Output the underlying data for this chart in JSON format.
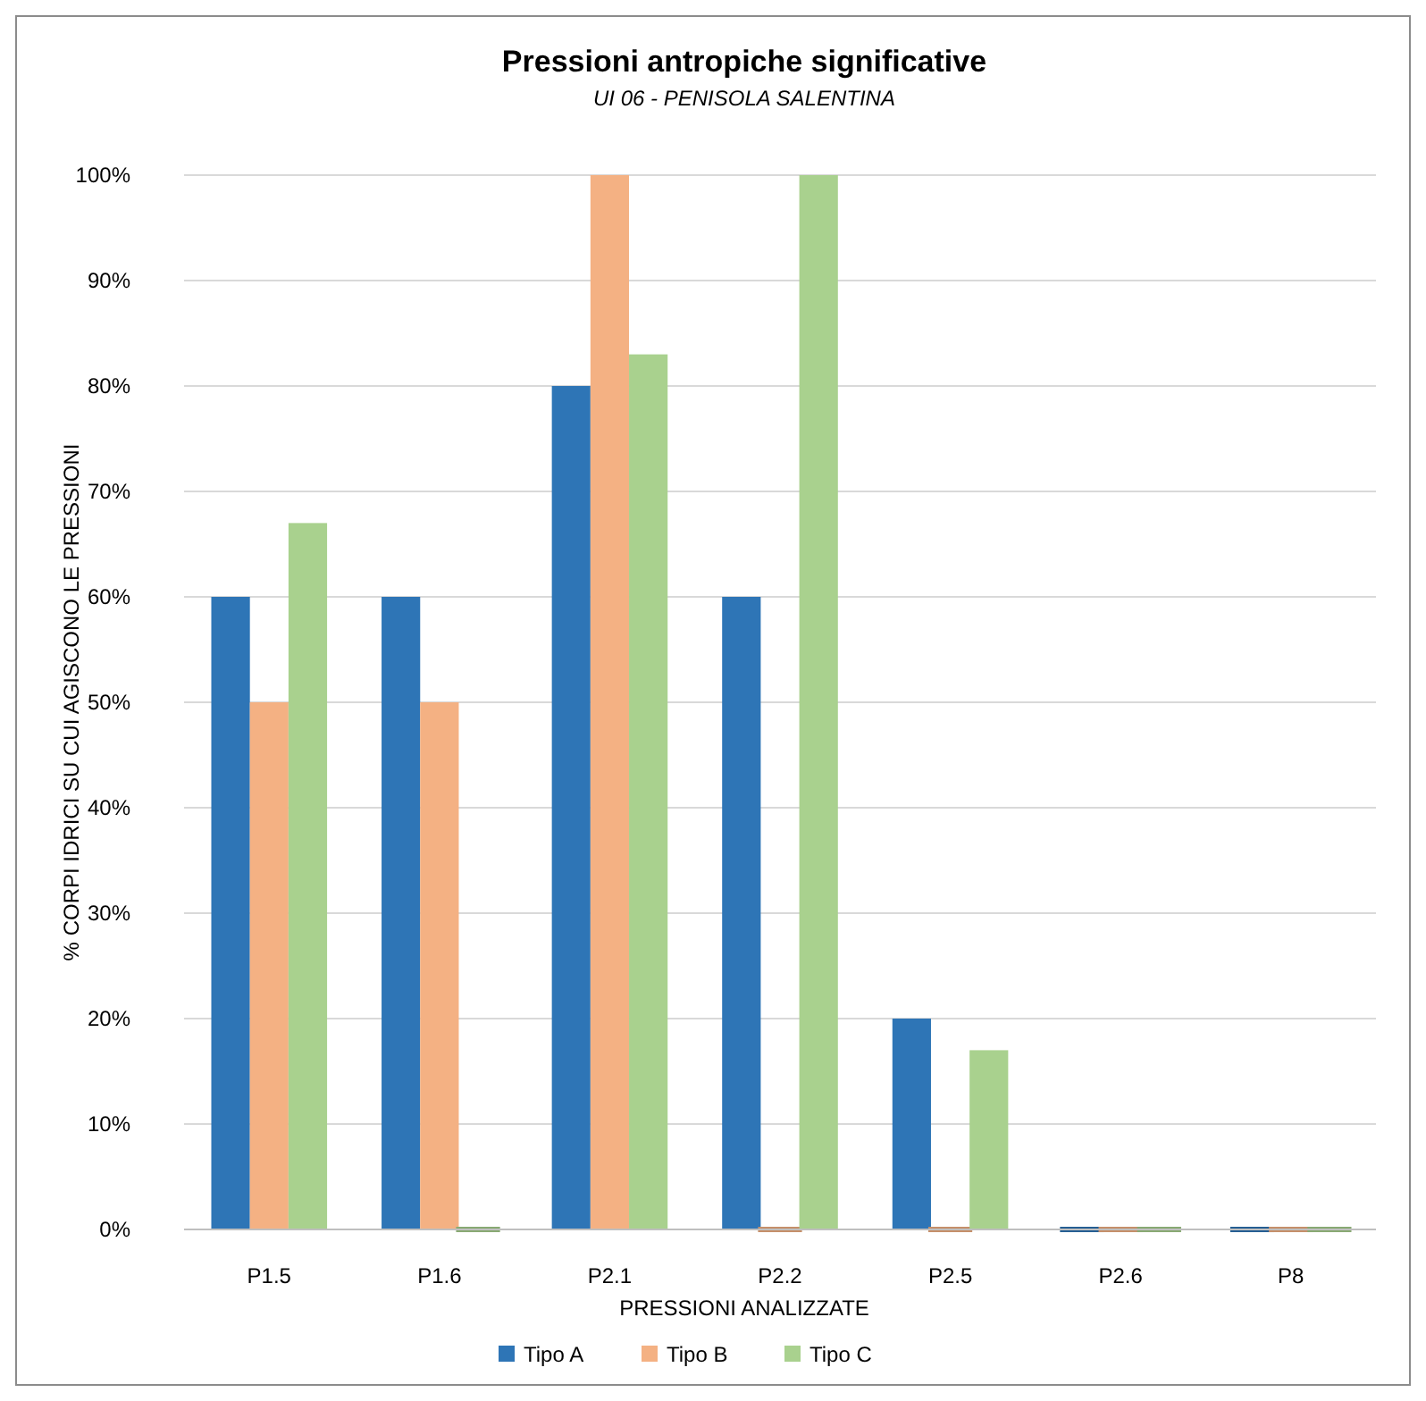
{
  "chart_data": {
    "type": "bar",
    "title": "Pressioni antropiche significative",
    "subtitle": "UI 06 - PENISOLA SALENTINA",
    "xlabel": "PRESSIONI ANALIZZATE",
    "ylabel": "% CORPI IDRICI SU CUI AGISCONO LE PRESSIONI",
    "categories": [
      "P1.5",
      "P1.6",
      "P2.1",
      "P2.2",
      "P2.5",
      "P2.6",
      "P8"
    ],
    "series": [
      {
        "name": "Tipo A",
        "color": "#2e75b6",
        "values": [
          60,
          60,
          80,
          60,
          20,
          0,
          0
        ]
      },
      {
        "name": "Tipo B",
        "color": "#f4b183",
        "values": [
          50,
          50,
          100,
          0,
          0,
          0,
          0
        ]
      },
      {
        "name": "Tipo C",
        "color": "#a9d18e",
        "values": [
          67,
          0,
          83,
          100,
          17,
          0,
          0
        ]
      }
    ],
    "ylim": [
      0,
      100
    ],
    "yticks": [
      {
        "value": 0,
        "label": "0%"
      },
      {
        "value": 10,
        "label": "10%"
      },
      {
        "value": 20,
        "label": "20%"
      },
      {
        "value": 30,
        "label": "30%"
      },
      {
        "value": 40,
        "label": "40%"
      },
      {
        "value": 50,
        "label": "50%"
      },
      {
        "value": 60,
        "label": "60%"
      },
      {
        "value": 70,
        "label": "70%"
      },
      {
        "value": 80,
        "label": "80%"
      },
      {
        "value": 90,
        "label": "90%"
      },
      {
        "value": 100,
        "label": "100%"
      }
    ],
    "grid": "y",
    "legend": "bottom"
  }
}
